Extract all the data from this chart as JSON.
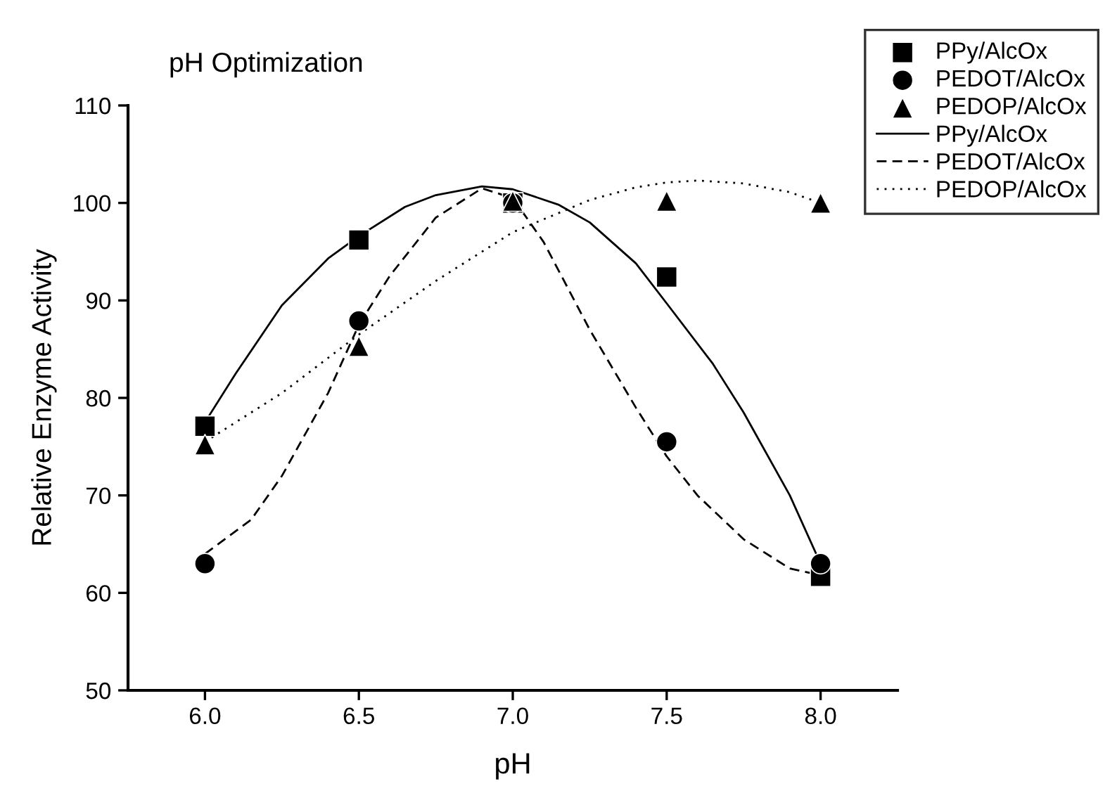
{
  "chart_data": {
    "type": "scatter",
    "title": "pH Optimization",
    "xlabel": "pH",
    "ylabel": "Relative Enzyme Activity",
    "xlim": [
      5.75,
      8.25
    ],
    "ylim": [
      50,
      110
    ],
    "xticks": [
      {
        "value": 6,
        "label": "6.0"
      },
      {
        "value": 6.5,
        "label": "6.5"
      },
      {
        "value": 7,
        "label": "7.0"
      },
      {
        "value": 7.5,
        "label": "7.5"
      },
      {
        "value": 8,
        "label": "8.0"
      }
    ],
    "yticks": [
      50,
      60,
      70,
      80,
      90,
      100,
      110
    ],
    "grid": false,
    "legend": "top right",
    "series": [
      {
        "name": "PPy/AlcOx",
        "marker": "square",
        "color": "#000000",
        "x": [
          6.0,
          6.5,
          7.0,
          7.5,
          8.0
        ],
        "values": [
          77.1,
          96.2,
          100,
          92.4,
          61.7
        ]
      },
      {
        "name": "PEDOT/AlcOx",
        "marker": "circle",
        "color": "#000000",
        "x": [
          6.0,
          6.5,
          7.0,
          7.5,
          8.0
        ],
        "values": [
          63,
          87.9,
          100,
          75.5,
          63
        ]
      },
      {
        "name": "PEDOP/AlcOx",
        "marker": "triangle",
        "color": "#000000",
        "x": [
          6.0,
          6.5,
          7.0,
          7.5,
          8.0
        ],
        "values": [
          75.2,
          85.3,
          100.2,
          100.2,
          100
        ]
      },
      {
        "name": "PPy/AlcOx",
        "type": "line",
        "line_style": "solid",
        "color": "#000000",
        "x": [
          6.0,
          6.1,
          6.25,
          6.4,
          6.5,
          6.65,
          6.75,
          6.9,
          7.0,
          7.15,
          7.25,
          7.4,
          7.5,
          7.65,
          7.75,
          7.9,
          8.0
        ],
        "values": [
          77.5,
          82.5,
          89.5,
          94.3,
          96.6,
          99.6,
          100.8,
          101.7,
          101.4,
          99.8,
          98.0,
          93.8,
          89.7,
          83.5,
          78.5,
          70.0,
          63
        ]
      },
      {
        "name": "PEDOT/AlcOx",
        "type": "line",
        "line_style": "dashed",
        "color": "#000000",
        "x": [
          6.0,
          6.15,
          6.25,
          6.4,
          6.5,
          6.6,
          6.75,
          6.9,
          7.0,
          7.1,
          7.25,
          7.4,
          7.5,
          7.6,
          7.75,
          7.9,
          8.0
        ],
        "values": [
          64,
          67.5,
          72,
          80.5,
          87.5,
          92.5,
          98.5,
          101.5,
          100.5,
          96,
          87,
          79,
          74,
          70,
          65.5,
          62.5,
          61.8
        ]
      },
      {
        "name": "PEDOP/AlcOx",
        "type": "line",
        "line_style": "dotted",
        "color": "#000000",
        "x": [
          6.0,
          6.25,
          6.5,
          6.75,
          7.0,
          7.25,
          7.4,
          7.5,
          7.6,
          7.75,
          7.9,
          8.0
        ],
        "values": [
          75.5,
          80.5,
          86.5,
          92,
          97,
          100.3,
          101.6,
          102.1,
          102.3,
          102.0,
          101.1,
          100
        ]
      }
    ]
  }
}
